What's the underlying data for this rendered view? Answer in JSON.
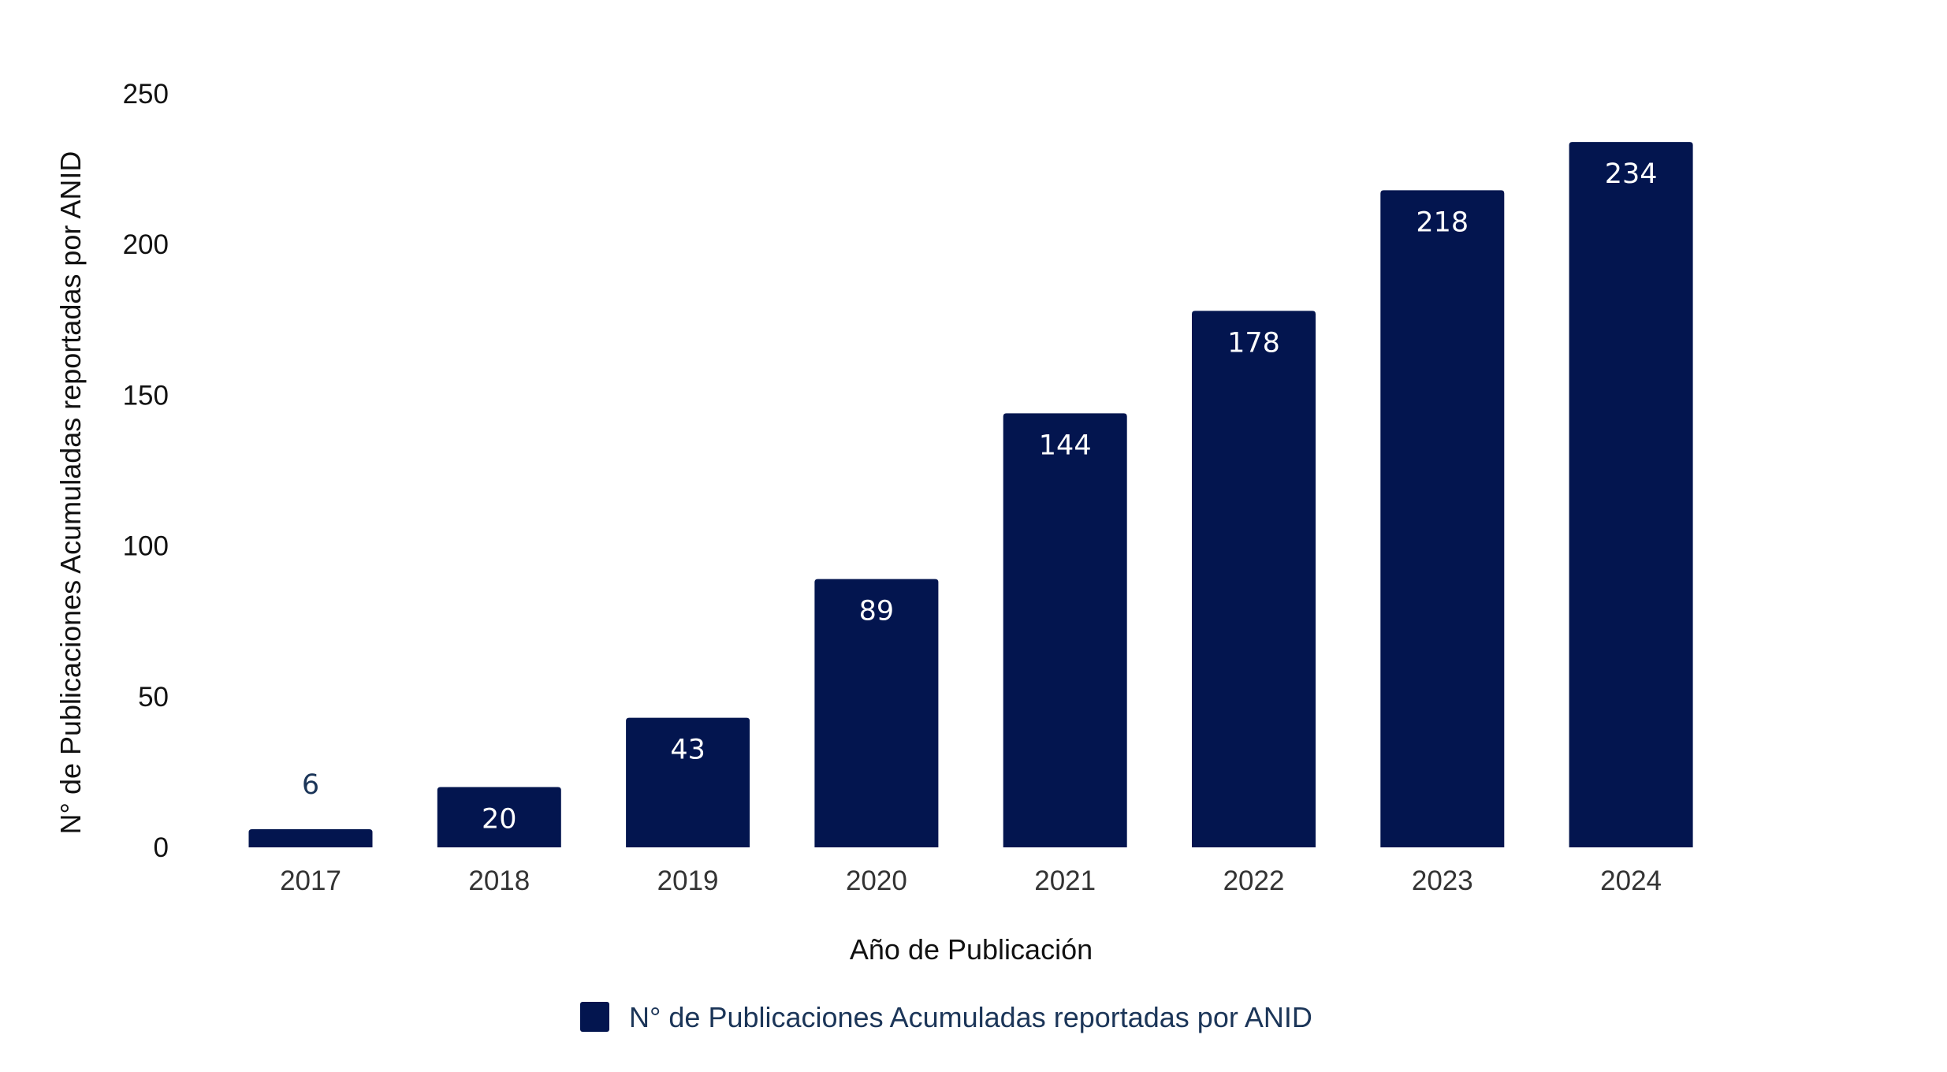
{
  "chart_data": {
    "type": "bar",
    "title": "",
    "xlabel": "Año de Publicación",
    "ylabel": "N° de Publicaciones Acumuladas reportadas por ANID",
    "categories": [
      "2017",
      "2018",
      "2019",
      "2020",
      "2021",
      "2022",
      "2023",
      "2024"
    ],
    "series": [
      {
        "name": "N° de Publicaciones Acumuladas reportadas por ANID",
        "values": [
          6,
          20,
          43,
          89,
          144,
          178,
          218,
          234
        ],
        "color": "#03154f"
      }
    ],
    "ylim": [
      0,
      250
    ],
    "yticks": [
      "0",
      "50",
      "100",
      "150",
      "200",
      "250"
    ],
    "grid": false,
    "legend": "bottom-center",
    "data_labels": true
  }
}
